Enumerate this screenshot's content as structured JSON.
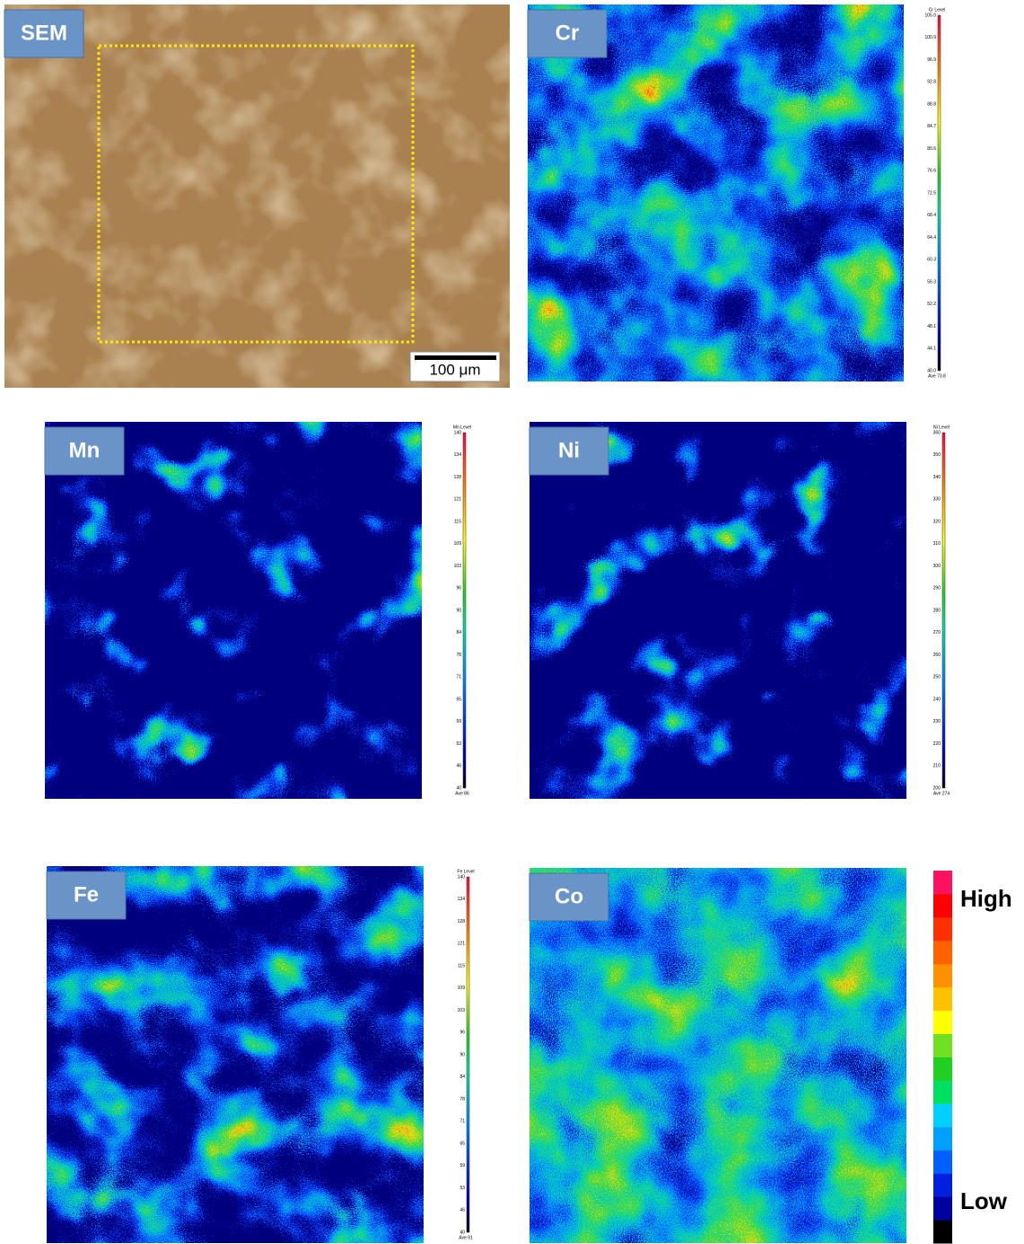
{
  "panels": [
    {
      "label": "SEM",
      "scale_bar": "100 μm"
    },
    {
      "label": "Cr",
      "colorbar": {
        "title": "Cr Level",
        "ticks": [
          "105.0",
          "100.9",
          "96.9",
          "92.8",
          "88.8",
          "84.7",
          "80.6",
          "76.6",
          "72.5",
          "68.4",
          "64.4",
          "60.3",
          "56.3",
          "52.2",
          "48.1",
          "44.1",
          "40.0"
        ],
        "average": "Ave 73.8"
      }
    },
    {
      "label": "Mn",
      "colorbar": {
        "title": "Mn Level",
        "ticks": [
          "140",
          "134",
          "128",
          "121",
          "115",
          "109",
          "103",
          "96",
          "90",
          "84",
          "78",
          "71",
          "65",
          "59",
          "53",
          "46",
          "40"
        ],
        "average": "Ave 86"
      }
    },
    {
      "label": "Ni",
      "colorbar": {
        "title": "Ni Level",
        "ticks": [
          "360",
          "350",
          "340",
          "330",
          "320",
          "310",
          "300",
          "290",
          "280",
          "270",
          "260",
          "250",
          "240",
          "230",
          "220",
          "210",
          "200"
        ],
        "average": "Ave 274"
      }
    },
    {
      "label": "Fe",
      "colorbar": {
        "title": "Fe Level",
        "ticks": [
          "140",
          "134",
          "128",
          "121",
          "115",
          "109",
          "103",
          "96",
          "90",
          "84",
          "78",
          "71",
          "65",
          "59",
          "53",
          "46",
          "40"
        ],
        "average": "Ave 91"
      }
    },
    {
      "label": "Co"
    }
  ],
  "legend": {
    "high": "High",
    "low": "Low"
  }
}
